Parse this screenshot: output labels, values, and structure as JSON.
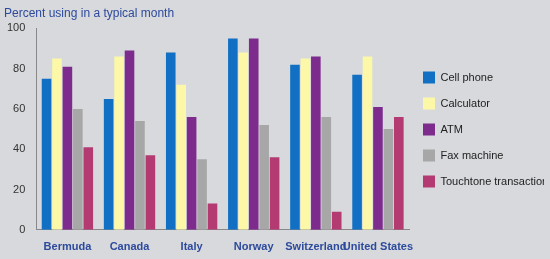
{
  "chart_data": {
    "type": "bar",
    "title": "Percent using in a typical month",
    "categories": [
      "Bermuda",
      "Canada",
      "Italy",
      "Norway",
      "Switzerland",
      "United States"
    ],
    "series": [
      {
        "name": "Cell phone",
        "color": "#1170c4",
        "values": [
          75,
          65,
          88,
          95,
          82,
          77
        ]
      },
      {
        "name": "Calculator",
        "color": "#fcf8a8",
        "values": [
          85,
          86,
          72,
          88,
          85,
          86
        ]
      },
      {
        "name": "ATM",
        "color": "#7e2b8e",
        "values": [
          81,
          89,
          56,
          95,
          86,
          61
        ]
      },
      {
        "name": "Fax machine",
        "color": "#a7a7a7",
        "values": [
          60,
          54,
          35,
          52,
          56,
          50
        ]
      },
      {
        "name": "Touchtone transactions",
        "color": "#b33b72",
        "values": [
          41,
          37,
          13,
          36,
          9,
          56
        ]
      }
    ],
    "ylim": [
      0,
      100
    ],
    "yticks": [
      0,
      20,
      40,
      60,
      80,
      100
    ],
    "grid": false,
    "legend": "right"
  }
}
